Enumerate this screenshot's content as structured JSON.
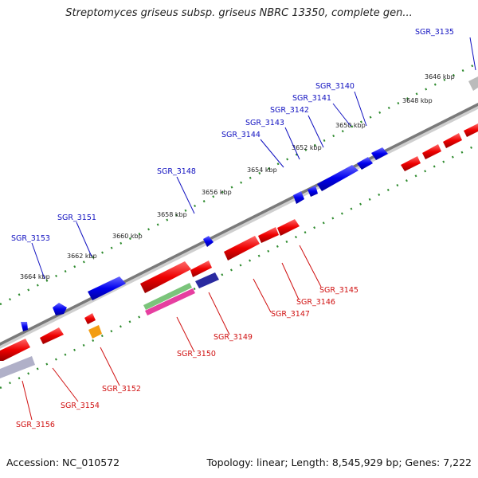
{
  "title": "Streptomyces griseus subsp. griseus NBRC 13350, complete gen...",
  "footer": {
    "accession_label": "Accession:",
    "accession": "NC_010572",
    "topology_label": "Topology:",
    "topology": "linear",
    "length_label": "Length:",
    "length": "8,545,929 bp",
    "genes_label": "Genes:",
    "genes": "7,222"
  },
  "colors": {
    "forward_gene": "#0000ee",
    "reverse_gene": "#ee0000",
    "forward_label": "#1010c0",
    "reverse_label": "#d01010",
    "backbone": "#7a7a7a",
    "forward_ticks": "#2e8b2e",
    "reverse_ticks": "#2e8b2e"
  },
  "ticks": [
    "3646 kbp",
    "3648 kbp",
    "3650 kbp",
    "3652 kbp",
    "3654 kbp",
    "3656 kbp",
    "3658 kbp",
    "3660 kbp",
    "3662 kbp",
    "3664 kbp"
  ],
  "forward_labels": [
    "SGR_3135",
    "SGR_3140",
    "SGR_3141",
    "SGR_3142",
    "SGR_3143",
    "SGR_3144",
    "SGR_3148",
    "SGR_3151",
    "SGR_3153"
  ],
  "reverse_labels": [
    "SGR_3145",
    "SGR_3146",
    "SGR_3147",
    "SGR_3149",
    "SGR_3150",
    "SGR_3152",
    "SGR_3154",
    "SGR_3156"
  ]
}
